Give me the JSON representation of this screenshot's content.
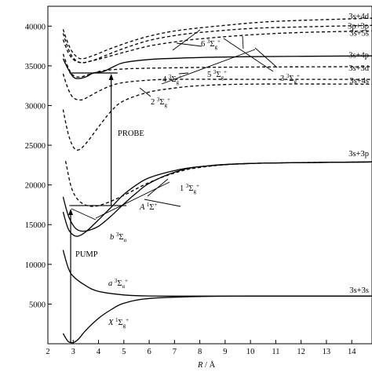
{
  "chart_data": {
    "type": "line",
    "title": "",
    "xlabel": "R / Å",
    "xlabel_italic": "R",
    "xlabel_rest": " / Å",
    "ylabel": "",
    "xlim": [
      2,
      14.8
    ],
    "ylim": [
      0,
      42500
    ],
    "x_ticks": [
      2,
      3,
      4,
      5,
      6,
      7,
      8,
      9,
      10,
      11,
      12,
      13,
      14
    ],
    "y_ticks": [
      5000,
      10000,
      15000,
      20000,
      25000,
      30000,
      35000,
      40000
    ],
    "grid": false,
    "series": [
      {
        "label": "X 1Σg+",
        "style": "solid",
        "points": [
          [
            2.6,
            1300
          ],
          [
            2.8,
            300
          ],
          [
            3.0,
            150
          ],
          [
            3.2,
            550
          ],
          [
            3.5,
            1700
          ],
          [
            4.0,
            3200
          ],
          [
            4.5,
            4300
          ],
          [
            5.0,
            5100
          ],
          [
            6.0,
            5700
          ],
          [
            8.0,
            5950
          ],
          [
            10.0,
            6000
          ],
          [
            14.8,
            6000
          ]
        ]
      },
      {
        "label": "a 3Σu+",
        "style": "solid",
        "points": [
          [
            2.6,
            11800
          ],
          [
            2.8,
            9600
          ],
          [
            3.0,
            8500
          ],
          [
            3.5,
            7300
          ],
          [
            4.0,
            6600
          ],
          [
            5.0,
            6150
          ],
          [
            6.0,
            6020
          ],
          [
            8.0,
            6000
          ],
          [
            14.8,
            6000
          ]
        ]
      },
      {
        "label": "b 3Σu",
        "style": "solid",
        "points": [
          [
            2.6,
            16600
          ],
          [
            2.8,
            14500
          ],
          [
            3.0,
            13700
          ],
          [
            3.2,
            13550
          ],
          [
            3.5,
            14100
          ],
          [
            4.0,
            15600
          ],
          [
            4.5,
            17200
          ],
          [
            5.0,
            18800
          ],
          [
            5.5,
            20000
          ],
          [
            6.0,
            20900
          ],
          [
            7.0,
            21800
          ],
          [
            8.0,
            22300
          ],
          [
            10.0,
            22700
          ],
          [
            14.8,
            22900
          ]
        ]
      },
      {
        "label": "A 1Σ+",
        "style": "solid",
        "points": [
          [
            2.6,
            18500
          ],
          [
            2.8,
            16200
          ],
          [
            3.0,
            14900
          ],
          [
            3.2,
            14300
          ],
          [
            3.5,
            14200
          ],
          [
            4.0,
            14800
          ],
          [
            4.5,
            16100
          ],
          [
            5.0,
            17600
          ],
          [
            5.5,
            19000
          ],
          [
            6.0,
            20200
          ],
          [
            7.0,
            21600
          ],
          [
            8.0,
            22300
          ],
          [
            10.0,
            22700
          ],
          [
            14.8,
            22900
          ]
        ]
      },
      {
        "label": "1 3Σg+",
        "style": "dashed",
        "points": [
          [
            2.7,
            23000
          ],
          [
            2.9,
            20000
          ],
          [
            3.1,
            18500
          ],
          [
            3.4,
            17600
          ],
          [
            3.8,
            17300
          ],
          [
            4.3,
            17700
          ],
          [
            5.0,
            18700
          ],
          [
            6.0,
            20300
          ],
          [
            7.0,
            21500
          ],
          [
            8.0,
            22200
          ],
          [
            10.0,
            22700
          ],
          [
            14.8,
            22900
          ]
        ]
      },
      {
        "label": "2 3Σg+",
        "style": "dashed",
        "points": [
          [
            2.6,
            29500
          ],
          [
            2.8,
            26500
          ],
          [
            3.0,
            24800
          ],
          [
            3.2,
            24400
          ],
          [
            3.5,
            25200
          ],
          [
            4.0,
            27300
          ],
          [
            4.5,
            29300
          ],
          [
            5.0,
            30600
          ],
          [
            6.0,
            31700
          ],
          [
            7.0,
            32200
          ],
          [
            8.0,
            32500
          ],
          [
            10.0,
            32700
          ],
          [
            14.8,
            32700
          ]
        ]
      },
      {
        "label": "3s+4s",
        "style": "dashed",
        "points": [
          [
            2.6,
            34000
          ],
          [
            2.8,
            32100
          ],
          [
            3.0,
            31000
          ],
          [
            3.3,
            30700
          ],
          [
            3.6,
            31100
          ],
          [
            4.0,
            31800
          ],
          [
            4.5,
            32500
          ],
          [
            5.0,
            32900
          ],
          [
            6.0,
            33200
          ],
          [
            7.0,
            33300
          ],
          [
            10.0,
            33300
          ],
          [
            14.8,
            33300
          ]
        ]
      },
      {
        "label": "3 3Σg+",
        "style": "dashed",
        "points": [
          [
            2.6,
            36500
          ],
          [
            2.8,
            34800
          ],
          [
            3.0,
            33800
          ],
          [
            3.3,
            33600
          ],
          [
            3.7,
            34000
          ],
          [
            4.2,
            34400
          ],
          [
            5.0,
            34600
          ],
          [
            6.0,
            34700
          ],
          [
            8.0,
            34800
          ],
          [
            10.0,
            34850
          ],
          [
            14.8,
            34900
          ]
        ]
      },
      {
        "label": "4 3Σg+",
        "style": "solid",
        "points": [
          [
            2.6,
            35900
          ],
          [
            2.8,
            34600
          ],
          [
            3.0,
            33600
          ],
          [
            3.2,
            33400
          ],
          [
            3.5,
            33600
          ],
          [
            3.8,
            34100
          ],
          [
            4.2,
            34300
          ],
          [
            4.6,
            34900
          ],
          [
            5.0,
            35400
          ],
          [
            6.0,
            35800
          ],
          [
            7.0,
            35950
          ],
          [
            8.0,
            36050
          ],
          [
            10.0,
            36150
          ],
          [
            14.8,
            36250
          ]
        ]
      },
      {
        "label": "5 3Σg+",
        "style": "dashed",
        "points": [
          [
            2.6,
            38300
          ],
          [
            2.8,
            36700
          ],
          [
            3.0,
            35800
          ],
          [
            3.3,
            35400
          ],
          [
            3.7,
            35600
          ],
          [
            4.2,
            36000
          ],
          [
            5.0,
            36700
          ],
          [
            6.0,
            37500
          ],
          [
            7.0,
            38000
          ],
          [
            8.0,
            38400
          ],
          [
            10.0,
            38900
          ],
          [
            12.0,
            39200
          ],
          [
            14.8,
            39400
          ]
        ]
      },
      {
        "label": "6 3Σg+",
        "style": "dashed",
        "points": [
          [
            2.6,
            39100
          ],
          [
            2.8,
            37200
          ],
          [
            3.0,
            36000
          ],
          [
            3.3,
            35400
          ],
          [
            3.7,
            35600
          ],
          [
            4.2,
            36200
          ],
          [
            5.0,
            37200
          ],
          [
            6.0,
            38200
          ],
          [
            7.0,
            38800
          ],
          [
            8.0,
            39200
          ],
          [
            10.0,
            39700
          ],
          [
            12.0,
            39900
          ],
          [
            14.8,
            40100
          ]
        ]
      },
      {
        "label": "3s+4d",
        "style": "dashed",
        "points": [
          [
            2.6,
            39600
          ],
          [
            2.8,
            37800
          ],
          [
            3.0,
            36600
          ],
          [
            3.3,
            35900
          ],
          [
            3.8,
            36300
          ],
          [
            4.5,
            37200
          ],
          [
            5.5,
            38300
          ],
          [
            6.5,
            39100
          ],
          [
            7.5,
            39600
          ],
          [
            9.0,
            40100
          ],
          [
            11.0,
            40600
          ],
          [
            14.8,
            41000
          ]
        ]
      }
    ],
    "right_labels": [
      {
        "text": "3s+4d",
        "y": 41200
      },
      {
        "text": "3p+3p",
        "y": 40000
      },
      {
        "text": "3s+5s",
        "y": 39100
      },
      {
        "text": "3s+4p",
        "y": 36300
      },
      {
        "text": "3s+3d",
        "y": 34700
      },
      {
        "text": "3s+4s",
        "y": 33100
      },
      {
        "text": "3s+3p",
        "y": 23900
      },
      {
        "text": "3s+3s",
        "y": 6700
      }
    ],
    "state_labels": [
      {
        "pre": "6 ",
        "sup": "3",
        "sym": "Σ",
        "sub": "g",
        "sup2": "+"
      },
      {
        "pre": "4 ",
        "sup": "3",
        "sym": "Σ",
        "sub": "g",
        "sup2": "+"
      },
      {
        "pre": "5 ",
        "sup": "3",
        "sym": "Σ",
        "sub": "g",
        "sup2": "+"
      },
      {
        "pre": "3 ",
        "sup": "3",
        "sym": "Σ",
        "sub": "g",
        "sup2": "+"
      },
      {
        "pre": "2 ",
        "sup": "3",
        "sym": "Σ",
        "sub": "g",
        "sup2": "+"
      },
      {
        "pre": "1 ",
        "sup": "3",
        "sym": "Σ",
        "sub": "g",
        "sup2": "+"
      },
      {
        "pre": "A ",
        "sup": "1",
        "sym": "Σ",
        "sub": "",
        "sup2": "+"
      },
      {
        "pre": "b ",
        "sup": "3",
        "sym": "Σ",
        "sub": "u",
        "sup2": ""
      },
      {
        "pre": "a ",
        "sup": "3",
        "sym": "Σ",
        "sub": "u",
        "sup2": "+"
      },
      {
        "pre": "X ",
        "sup": "1",
        "sym": "Σ",
        "sub": "g",
        "sup2": "+"
      }
    ],
    "annotations": {
      "probe": "PROBE",
      "pump": "PUMP"
    }
  }
}
